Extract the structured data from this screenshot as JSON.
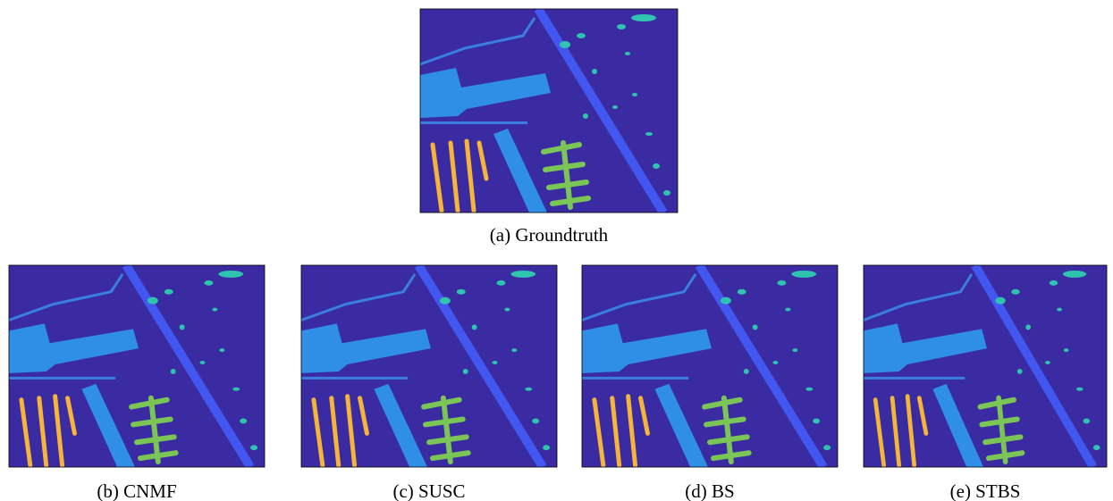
{
  "figures": [
    {
      "caption": "(a) Groundtruth"
    },
    {
      "caption": "(b) CNMF"
    },
    {
      "caption": "(c) SUSC"
    },
    {
      "caption": "(d) BS"
    },
    {
      "caption": "(e) STBS"
    }
  ]
}
